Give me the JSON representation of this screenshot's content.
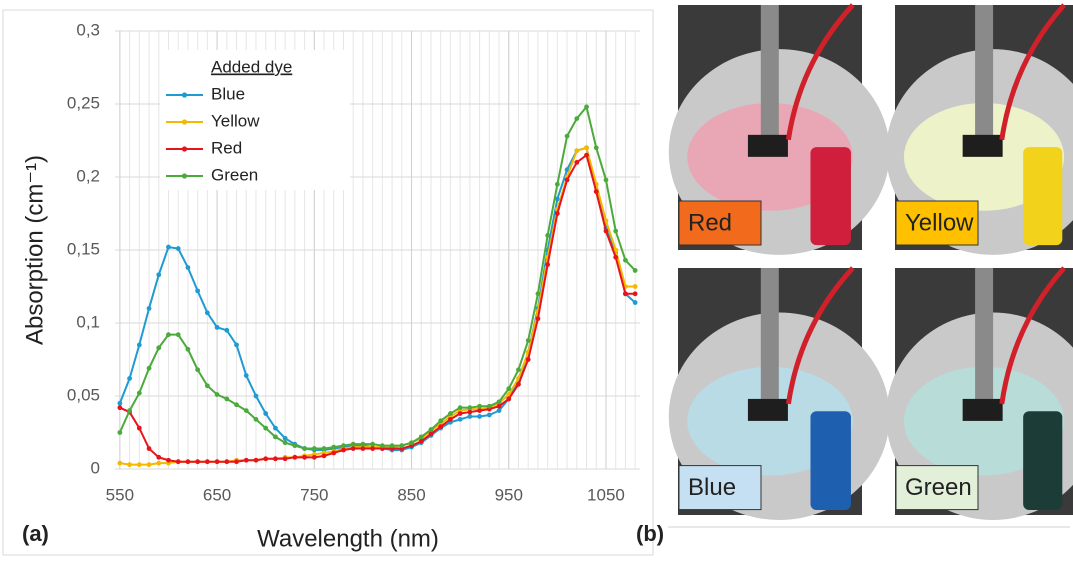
{
  "chart_data": {
    "type": "line",
    "xlabel": "Wavelength (nm)",
    "ylabel": "Absorption (cm⁻¹)",
    "legend_title": "Added dye",
    "x": [
      550,
      560,
      570,
      580,
      590,
      600,
      610,
      620,
      630,
      640,
      650,
      660,
      670,
      680,
      690,
      700,
      710,
      720,
      730,
      740,
      750,
      760,
      770,
      780,
      790,
      800,
      810,
      820,
      830,
      840,
      850,
      860,
      870,
      880,
      890,
      900,
      910,
      920,
      930,
      940,
      950,
      960,
      970,
      980,
      990,
      1000,
      1010,
      1020,
      1030,
      1040,
      1050,
      1060,
      1070,
      1080
    ],
    "series": [
      {
        "name": "Blue",
        "color": "#1f9bd1",
        "values": [
          0.045,
          0.062,
          0.085,
          0.11,
          0.133,
          0.152,
          0.151,
          0.138,
          0.122,
          0.107,
          0.097,
          0.095,
          0.085,
          0.064,
          0.05,
          0.038,
          0.028,
          0.021,
          0.017,
          0.014,
          0.013,
          0.013,
          0.014,
          0.015,
          0.016,
          0.016,
          0.015,
          0.014,
          0.013,
          0.013,
          0.015,
          0.018,
          0.023,
          0.028,
          0.032,
          0.034,
          0.036,
          0.036,
          0.037,
          0.04,
          0.048,
          0.06,
          0.08,
          0.11,
          0.15,
          0.185,
          0.205,
          0.218,
          0.22,
          0.19,
          0.165,
          0.148,
          0.12,
          0.114
        ]
      },
      {
        "name": "Yellow",
        "color": "#f5b800",
        "values": [
          0.004,
          0.003,
          0.003,
          0.003,
          0.004,
          0.004,
          0.005,
          0.005,
          0.005,
          0.005,
          0.005,
          0.005,
          0.006,
          0.006,
          0.006,
          0.007,
          0.007,
          0.008,
          0.008,
          0.009,
          0.01,
          0.011,
          0.012,
          0.014,
          0.015,
          0.015,
          0.015,
          0.015,
          0.015,
          0.016,
          0.018,
          0.021,
          0.026,
          0.031,
          0.036,
          0.04,
          0.041,
          0.041,
          0.042,
          0.045,
          0.051,
          0.062,
          0.08,
          0.108,
          0.145,
          0.178,
          0.2,
          0.218,
          0.22,
          0.195,
          0.17,
          0.15,
          0.125,
          0.125
        ]
      },
      {
        "name": "Red",
        "color": "#e8141c",
        "values": [
          0.042,
          0.039,
          0.028,
          0.014,
          0.008,
          0.006,
          0.005,
          0.005,
          0.005,
          0.005,
          0.005,
          0.005,
          0.005,
          0.006,
          0.006,
          0.007,
          0.007,
          0.007,
          0.008,
          0.008,
          0.008,
          0.009,
          0.011,
          0.013,
          0.014,
          0.014,
          0.014,
          0.014,
          0.014,
          0.014,
          0.016,
          0.019,
          0.024,
          0.029,
          0.034,
          0.038,
          0.039,
          0.04,
          0.041,
          0.043,
          0.048,
          0.058,
          0.075,
          0.103,
          0.14,
          0.175,
          0.198,
          0.21,
          0.215,
          0.19,
          0.163,
          0.145,
          0.12,
          0.12
        ]
      },
      {
        "name": "Green",
        "color": "#4caa3c",
        "values": [
          0.025,
          0.04,
          0.052,
          0.069,
          0.083,
          0.092,
          0.092,
          0.082,
          0.068,
          0.057,
          0.051,
          0.048,
          0.044,
          0.04,
          0.034,
          0.028,
          0.022,
          0.018,
          0.016,
          0.014,
          0.014,
          0.014,
          0.015,
          0.016,
          0.017,
          0.017,
          0.017,
          0.016,
          0.016,
          0.016,
          0.018,
          0.022,
          0.027,
          0.033,
          0.038,
          0.042,
          0.042,
          0.043,
          0.043,
          0.046,
          0.055,
          0.068,
          0.088,
          0.12,
          0.16,
          0.195,
          0.228,
          0.24,
          0.248,
          0.22,
          0.198,
          0.163,
          0.143,
          0.136
        ]
      }
    ],
    "xlim": [
      545,
      1085
    ],
    "xticks": [
      550,
      650,
      750,
      850,
      950,
      1050
    ],
    "ylim": [
      0,
      0.3
    ],
    "yticks": [
      0,
      {
        "value": 0.05,
        "label": "0,05"
      },
      {
        "value": 0.1,
        "label": "0,1"
      },
      {
        "value": 0.15,
        "label": "0,15"
      },
      {
        "value": 0.2,
        "label": "0,2"
      },
      {
        "value": 0.25,
        "label": "0,25"
      },
      {
        "value": 0.3,
        "label": "0,3"
      }
    ],
    "grid": true,
    "legend": "upper left"
  },
  "panels": {
    "a": "(a)",
    "b": "(b)"
  },
  "photos": [
    {
      "label": "Red"
    },
    {
      "label": "Yellow"
    },
    {
      "label": "Blue"
    },
    {
      "label": "Green"
    }
  ]
}
